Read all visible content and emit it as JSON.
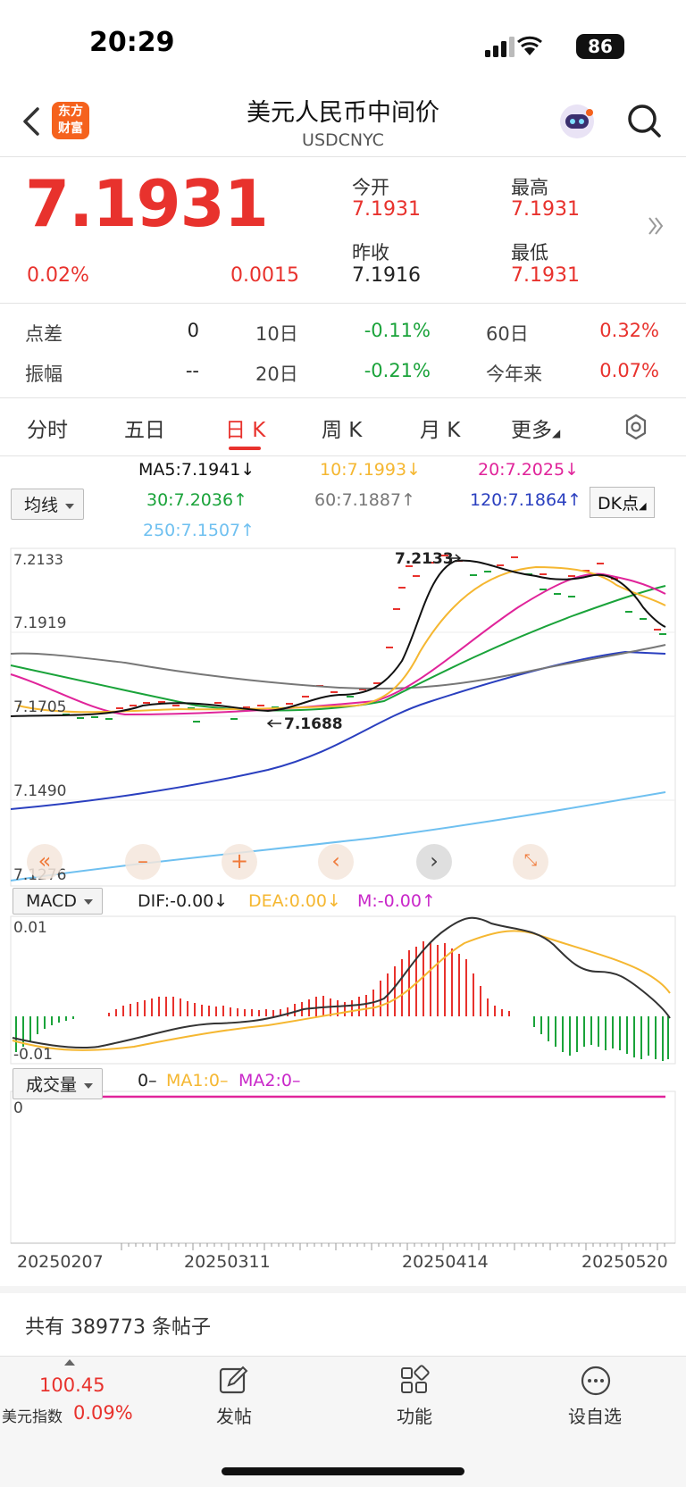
{
  "status_bar": {
    "time": "20:29",
    "battery": "86"
  },
  "header": {
    "logo_text_1": "东方",
    "logo_text_2": "财富",
    "title": "美元人民币中间价",
    "subtitle": "USDCNYC"
  },
  "quote": {
    "price": "7.1931",
    "change_pct": "0.02%",
    "change": "0.0015",
    "open_label": "今开",
    "open": "7.1931",
    "high_label": "最高",
    "high": "7.1931",
    "prev_close_label": "昨收",
    "prev_close": "7.1916",
    "low_label": "最低",
    "low": "7.1931"
  },
  "stats": {
    "spread_label": "点差",
    "spread": "0",
    "d10_label": "10日",
    "d10": "-0.11%",
    "d60_label": "60日",
    "d60": "0.32%",
    "amp_label": "振幅",
    "amp": "--",
    "d20_label": "20日",
    "d20": "-0.21%",
    "ytd_label": "今年来",
    "ytd": "0.07%"
  },
  "tabs": [
    "分时",
    "五日",
    "日 K",
    "周 K",
    "月 K",
    "更多"
  ],
  "ma_legend": {
    "selector": "均线",
    "ma5": "MA5:7.1941",
    "ma10": "10:7.1993",
    "ma20": "20:7.2025",
    "ma30": "30:7.2036",
    "ma60": "60:7.1887",
    "ma120": "120:7.1864",
    "ma250": "250:7.1507",
    "dk_button": "DK点",
    "arrow_down": "↓",
    "arrow_up": "↑"
  },
  "kline_axis": {
    "y1": "7.2133",
    "y2": "7.1919",
    "y3": "7.1705",
    "y4": "7.1490",
    "y5": "7.1276",
    "high_mark": "7.2133",
    "low_mark": "7.1688"
  },
  "macd": {
    "selector": "MACD",
    "dif": "DIF:-0.00",
    "dea": "DEA:0.00",
    "m": "M:-0.00",
    "ymax": "0.01",
    "ymin": "-0.01",
    "arrow_down": "↓",
    "arrow_up": "↑"
  },
  "volume": {
    "selector": "成交量",
    "value": "0–",
    "ma1": "MA1:0–",
    "ma2": "MA2:0–",
    "ymax": "0"
  },
  "dates": [
    "20250207",
    "20250311",
    "20250414",
    "20250520"
  ],
  "posts": "共有 389773 条帖子",
  "bottom_bar": {
    "index_value": "100.45",
    "index_name": "美元指数",
    "index_pct": "0.09%",
    "post_label": "发帖",
    "func_label": "功能",
    "watch_label": "设自选"
  },
  "colors": {
    "up": "#e8322d",
    "down": "#1aa33a",
    "ma5": "#111111",
    "ma10": "#f5b731",
    "ma20": "#e0249a",
    "ma30": "#1aa33a",
    "ma60": "#777777",
    "ma120": "#2a3fbf",
    "ma250": "#6fc0f0"
  }
}
